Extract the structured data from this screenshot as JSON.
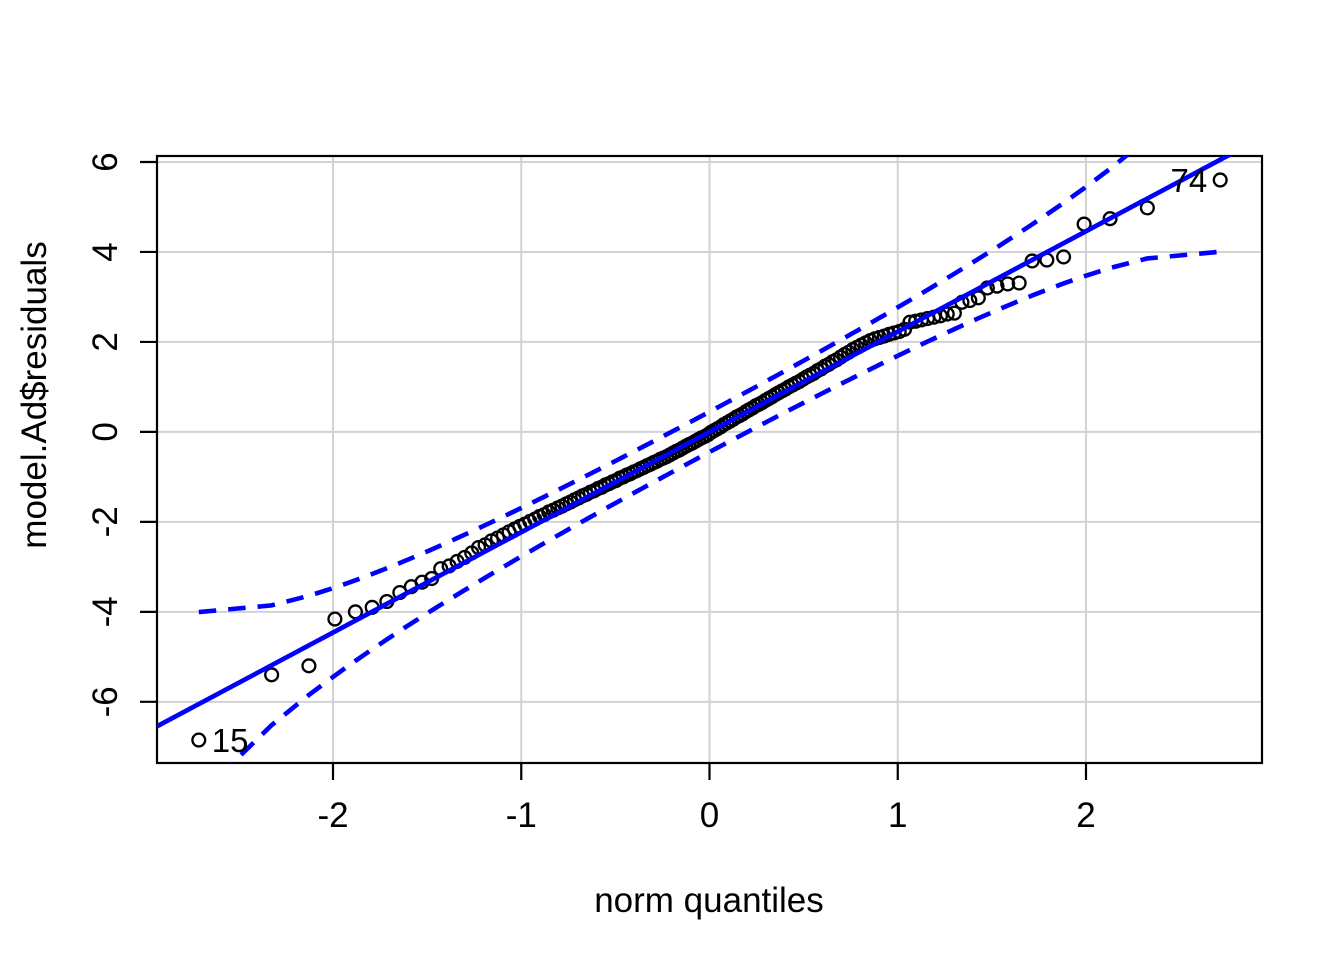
{
  "chart_data": {
    "type": "scatter",
    "subtype": "qq-plot-with-confidence-envelope",
    "title": "",
    "xlabel": "norm quantiles",
    "ylabel": "model.Ad$residuals",
    "x_ticks": [
      -2,
      -1,
      0,
      1,
      2
    ],
    "y_ticks": [
      -6,
      -4,
      -2,
      0,
      2,
      4,
      6
    ],
    "xlim": [
      -2.935,
      2.935
    ],
    "ylim": [
      -7.36,
      6.133
    ],
    "grid": true,
    "legend": "none",
    "n": 150,
    "reference_line": {
      "slope": 2.23,
      "intercept": 0.0,
      "color": "#0000FF",
      "style": "solid"
    },
    "envelope": {
      "confidence": 0.95,
      "z_mult": 1.96,
      "color": "#0000FF",
      "style": "dashed"
    },
    "point_style": {
      "marker": "open-circle",
      "stroke": "#000000"
    },
    "grid_color": "#D3D3D3",
    "outlier_labels": [
      {
        "label": "15",
        "point_index": 0,
        "side": "right"
      },
      {
        "label": "74",
        "point_index": 149,
        "side": "left"
      }
    ],
    "points": [
      [
        -2.713,
        -6.85
      ],
      [
        -2.326,
        -5.4
      ],
      [
        -2.128,
        -5.2
      ],
      [
        -1.99,
        -4.16
      ],
      [
        -1.881,
        -4.0
      ],
      [
        -1.792,
        -3.9
      ],
      [
        -1.714,
        -3.77
      ],
      [
        -1.645,
        -3.57
      ],
      [
        -1.584,
        -3.44
      ],
      [
        -1.527,
        -3.34
      ],
      [
        -1.476,
        -3.26
      ],
      [
        -1.428,
        -3.04
      ],
      [
        -1.383,
        -2.98
      ],
      [
        -1.341,
        -2.88
      ],
      [
        -1.301,
        -2.79
      ],
      [
        -1.263,
        -2.69
      ],
      [
        -1.227,
        -2.57
      ],
      [
        -1.192,
        -2.51
      ],
      [
        -1.158,
        -2.42
      ],
      [
        -1.126,
        -2.36
      ],
      [
        -1.095,
        -2.29
      ],
      [
        -1.065,
        -2.22
      ],
      [
        -1.036,
        -2.16
      ],
      [
        -1.008,
        -2.1
      ],
      [
        -0.981,
        -2.05
      ],
      [
        -0.954,
        -1.99
      ],
      [
        -0.928,
        -1.94
      ],
      [
        -0.903,
        -1.88
      ],
      [
        -0.878,
        -1.84
      ],
      [
        -0.854,
        -1.78
      ],
      [
        -0.83,
        -1.74
      ],
      [
        -0.806,
        -1.69
      ],
      [
        -0.784,
        -1.65
      ],
      [
        -0.761,
        -1.6
      ],
      [
        -0.739,
        -1.56
      ],
      [
        -0.717,
        -1.51
      ],
      [
        -0.696,
        -1.47
      ],
      [
        -0.674,
        -1.42
      ],
      [
        -0.654,
        -1.39
      ],
      [
        -0.633,
        -1.34
      ],
      [
        -0.613,
        -1.31
      ],
      [
        -0.593,
        -1.26
      ],
      [
        -0.573,
        -1.23
      ],
      [
        -0.553,
        -1.18
      ],
      [
        -0.534,
        -1.15
      ],
      [
        -0.515,
        -1.11
      ],
      [
        -0.496,
        -1.08
      ],
      [
        -0.477,
        -1.03
      ],
      [
        -0.458,
        -1.0
      ],
      [
        -0.44,
        -0.96
      ],
      [
        -0.421,
        -0.93
      ],
      [
        -0.403,
        -0.89
      ],
      [
        -0.385,
        -0.86
      ],
      [
        -0.367,
        -0.82
      ],
      [
        -0.35,
        -0.79
      ],
      [
        -0.332,
        -0.75
      ],
      [
        -0.314,
        -0.72
      ],
      [
        -0.297,
        -0.68
      ],
      [
        -0.279,
        -0.65
      ],
      [
        -0.262,
        -0.61
      ],
      [
        -0.245,
        -0.58
      ],
      [
        -0.228,
        -0.55
      ],
      [
        -0.21,
        -0.51
      ],
      [
        -0.193,
        -0.47
      ],
      [
        -0.176,
        -0.43
      ],
      [
        -0.159,
        -0.4
      ],
      [
        -0.143,
        -0.36
      ],
      [
        -0.126,
        -0.32
      ],
      [
        -0.109,
        -0.28
      ],
      [
        -0.092,
        -0.25
      ],
      [
        -0.075,
        -0.21
      ],
      [
        -0.059,
        -0.17
      ],
      [
        -0.042,
        -0.13
      ],
      [
        -0.025,
        -0.1
      ],
      [
        -0.008,
        -0.06
      ],
      [
        0.008,
        -0.01
      ],
      [
        0.025,
        0.03
      ],
      [
        0.042,
        0.07
      ],
      [
        0.059,
        0.11
      ],
      [
        0.075,
        0.16
      ],
      [
        0.092,
        0.2
      ],
      [
        0.109,
        0.24
      ],
      [
        0.126,
        0.28
      ],
      [
        0.143,
        0.33
      ],
      [
        0.159,
        0.36
      ],
      [
        0.176,
        0.4
      ],
      [
        0.193,
        0.45
      ],
      [
        0.21,
        0.49
      ],
      [
        0.228,
        0.53
      ],
      [
        0.245,
        0.58
      ],
      [
        0.262,
        0.61
      ],
      [
        0.279,
        0.65
      ],
      [
        0.297,
        0.7
      ],
      [
        0.314,
        0.74
      ],
      [
        0.332,
        0.78
      ],
      [
        0.35,
        0.83
      ],
      [
        0.367,
        0.87
      ],
      [
        0.385,
        0.91
      ],
      [
        0.403,
        0.95
      ],
      [
        0.421,
        1.0
      ],
      [
        0.44,
        1.04
      ],
      [
        0.458,
        1.08
      ],
      [
        0.477,
        1.12
      ],
      [
        0.496,
        1.17
      ],
      [
        0.515,
        1.22
      ],
      [
        0.534,
        1.26
      ],
      [
        0.553,
        1.3
      ],
      [
        0.573,
        1.36
      ],
      [
        0.593,
        1.4
      ],
      [
        0.613,
        1.46
      ],
      [
        0.633,
        1.5
      ],
      [
        0.654,
        1.56
      ],
      [
        0.674,
        1.6
      ],
      [
        0.696,
        1.66
      ],
      [
        0.717,
        1.72
      ],
      [
        0.739,
        1.77
      ],
      [
        0.761,
        1.83
      ],
      [
        0.784,
        1.88
      ],
      [
        0.806,
        1.93
      ],
      [
        0.83,
        1.98
      ],
      [
        0.854,
        2.03
      ],
      [
        0.878,
        2.07
      ],
      [
        0.903,
        2.1
      ],
      [
        0.928,
        2.13
      ],
      [
        0.954,
        2.17
      ],
      [
        0.981,
        2.2
      ],
      [
        1.008,
        2.23
      ],
      [
        1.036,
        2.28
      ],
      [
        1.065,
        2.44
      ],
      [
        1.095,
        2.46
      ],
      [
        1.126,
        2.49
      ],
      [
        1.158,
        2.52
      ],
      [
        1.192,
        2.55
      ],
      [
        1.227,
        2.58
      ],
      [
        1.263,
        2.62
      ],
      [
        1.301,
        2.64
      ],
      [
        1.341,
        2.88
      ],
      [
        1.383,
        2.92
      ],
      [
        1.428,
        2.98
      ],
      [
        1.476,
        3.2
      ],
      [
        1.527,
        3.24
      ],
      [
        1.584,
        3.29
      ],
      [
        1.645,
        3.31
      ],
      [
        1.714,
        3.8
      ],
      [
        1.792,
        3.82
      ],
      [
        1.881,
        3.89
      ],
      [
        1.99,
        4.62
      ],
      [
        2.128,
        4.74
      ],
      [
        2.326,
        4.98
      ],
      [
        2.713,
        5.6
      ]
    ]
  }
}
